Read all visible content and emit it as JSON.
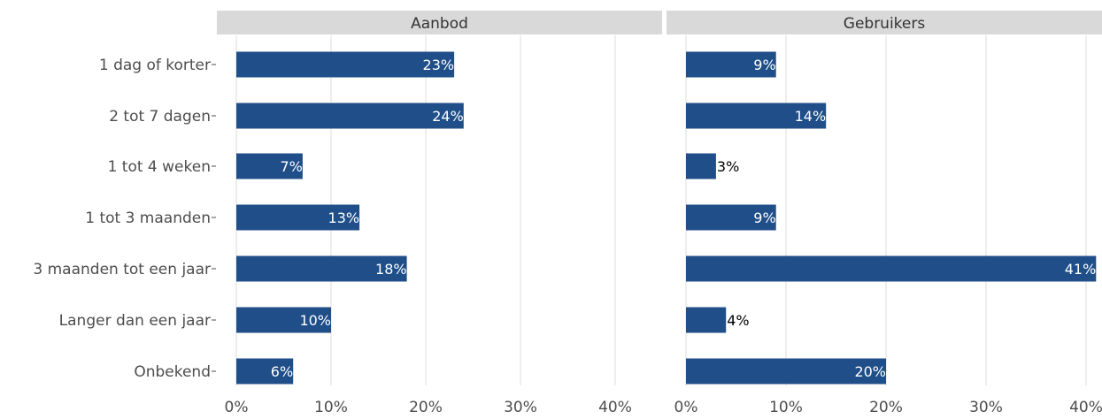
{
  "chart_data": {
    "type": "bar",
    "orientation": "horizontal",
    "categories": [
      "1 dag of korter",
      "2 tot 7 dagen",
      "1 tot 4 weken",
      "1 tot 3 maanden",
      "3 maanden tot een jaar",
      "Langer dan een jaar",
      "Onbekend"
    ],
    "series": [
      {
        "name": "Aanbod",
        "values": [
          23,
          24,
          7,
          13,
          18,
          10,
          6
        ],
        "labels": [
          "23%",
          "24%",
          "7%",
          "13%",
          "18%",
          "10%",
          "6%"
        ]
      },
      {
        "name": "Gebruikers",
        "values": [
          9,
          14,
          3,
          9,
          41,
          4,
          20
        ],
        "labels": [
          "9%",
          "14%",
          "3%",
          "9%",
          "41%",
          "4%",
          "20%"
        ]
      }
    ],
    "xticks": [
      0,
      10,
      20,
      30,
      40
    ],
    "xtick_labels": [
      "0%",
      "10%",
      "20%",
      "30%",
      "40%"
    ],
    "xlim": [
      0,
      41
    ],
    "grid": true,
    "xlabel": "",
    "ylabel": "",
    "title": "",
    "colors": {
      "bar": "#1f4e88",
      "strip": "#d9d9d9",
      "grid": "#dcdcdc",
      "label_inside": "#ffffff",
      "label_outside": "#000000"
    }
  }
}
